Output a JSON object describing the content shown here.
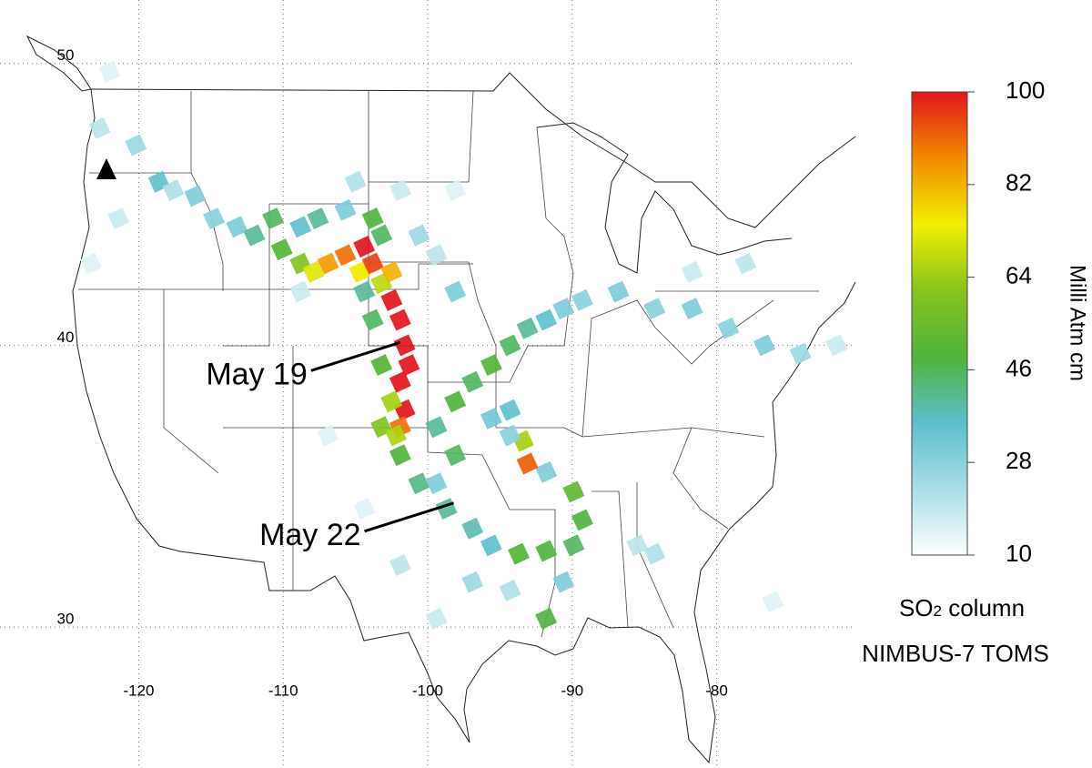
{
  "map": {
    "lonlim": [
      -129.6,
      -70.4
    ],
    "latlim": [
      25,
      52.25
    ],
    "lon_ticks": [
      -120,
      -110,
      -100,
      -90,
      -80
    ],
    "lat_ticks": [
      50,
      40,
      30
    ],
    "annotations": [
      {
        "text": "May 19",
        "lon": -101.9,
        "lat": 40.1
      },
      {
        "text": "May 22",
        "lon": -98.2,
        "lat": 34.4
      }
    ]
  },
  "colorbar": {
    "lim": [
      10,
      100
    ],
    "ticks": [
      100,
      82,
      64,
      46,
      28,
      10
    ],
    "colors": [
      "#ffffff",
      "#a9dde7",
      "#5cbfcc",
      "#4fb33a",
      "#88c41c",
      "#f2ee00",
      "#f28a00",
      "#e3141c"
    ],
    "title": "Milli Atm cm",
    "caption_main": "SO",
    "caption_sub": "2",
    "caption_rest": " column",
    "source": "NIMBUS-7 TOMS"
  },
  "plume": {
    "cells": [
      {
        "lon": -122.0,
        "lat": 49.7,
        "value": 15
      },
      {
        "lon": -122.7,
        "lat": 47.7,
        "value": 20
      },
      {
        "lon": -120.2,
        "lat": 47.1,
        "value": 25
      },
      {
        "lon": -118.6,
        "lat": 45.8,
        "value": 35
      },
      {
        "lon": -117.6,
        "lat": 45.5,
        "value": 22
      },
      {
        "lon": -116.1,
        "lat": 45.3,
        "value": 30
      },
      {
        "lon": -114.8,
        "lat": 44.5,
        "value": 28
      },
      {
        "lon": -113.2,
        "lat": 44.2,
        "value": 30
      },
      {
        "lon": -112.0,
        "lat": 43.9,
        "value": 40
      },
      {
        "lon": -110.7,
        "lat": 44.5,
        "value": 45
      },
      {
        "lon": -110.1,
        "lat": 43.4,
        "value": 50
      },
      {
        "lon": -108.8,
        "lat": 42.9,
        "value": 60
      },
      {
        "lon": -107.9,
        "lat": 42.6,
        "value": 72
      },
      {
        "lon": -106.9,
        "lat": 42.9,
        "value": 85
      },
      {
        "lon": -105.7,
        "lat": 43.2,
        "value": 90
      },
      {
        "lon": -104.4,
        "lat": 43.5,
        "value": 100
      },
      {
        "lon": -104.7,
        "lat": 42.6,
        "value": 75
      },
      {
        "lon": -103.8,
        "lat": 42.9,
        "value": 95
      },
      {
        "lon": -103.2,
        "lat": 42.2,
        "value": 68
      },
      {
        "lon": -102.5,
        "lat": 42.6,
        "value": 82
      },
      {
        "lon": -102.5,
        "lat": 41.6,
        "value": 100
      },
      {
        "lon": -101.9,
        "lat": 40.9,
        "value": 100
      },
      {
        "lon": -101.6,
        "lat": 40.0,
        "value": 100
      },
      {
        "lon": -101.3,
        "lat": 39.3,
        "value": 100
      },
      {
        "lon": -101.9,
        "lat": 38.7,
        "value": 100
      },
      {
        "lon": -101.6,
        "lat": 37.7,
        "value": 100
      },
      {
        "lon": -101.9,
        "lat": 37.1,
        "value": 90
      },
      {
        "lon": -102.5,
        "lat": 38.0,
        "value": 65
      },
      {
        "lon": -103.2,
        "lat": 37.1,
        "value": 60
      },
      {
        "lon": -102.2,
        "lat": 36.8,
        "value": 66
      },
      {
        "lon": -103.2,
        "lat": 39.3,
        "value": 50
      },
      {
        "lon": -103.8,
        "lat": 40.9,
        "value": 45
      },
      {
        "lon": -104.4,
        "lat": 41.9,
        "value": 40
      },
      {
        "lon": -108.8,
        "lat": 44.2,
        "value": 35
      },
      {
        "lon": -107.6,
        "lat": 44.5,
        "value": 40
      },
      {
        "lon": -105.7,
        "lat": 44.8,
        "value": 30
      },
      {
        "lon": -103.8,
        "lat": 44.5,
        "value": 48
      },
      {
        "lon": -103.2,
        "lat": 43.9,
        "value": 45
      },
      {
        "lon": -105.0,
        "lat": 45.8,
        "value": 22
      },
      {
        "lon": -101.9,
        "lat": 45.5,
        "value": 18
      },
      {
        "lon": -98.1,
        "lat": 45.5,
        "value": 15
      },
      {
        "lon": -99.4,
        "lat": 37.1,
        "value": 40
      },
      {
        "lon": -98.1,
        "lat": 38.0,
        "value": 48
      },
      {
        "lon": -96.9,
        "lat": 38.7,
        "value": 45
      },
      {
        "lon": -95.6,
        "lat": 39.3,
        "value": 50
      },
      {
        "lon": -94.3,
        "lat": 40.0,
        "value": 45
      },
      {
        "lon": -93.1,
        "lat": 40.6,
        "value": 40
      },
      {
        "lon": -91.8,
        "lat": 40.9,
        "value": 35
      },
      {
        "lon": -90.6,
        "lat": 41.3,
        "value": 30
      },
      {
        "lon": -89.3,
        "lat": 41.6,
        "value": 28
      },
      {
        "lon": -86.8,
        "lat": 41.9,
        "value": 30
      },
      {
        "lon": -84.3,
        "lat": 41.3,
        "value": 28
      },
      {
        "lon": -81.7,
        "lat": 41.3,
        "value": 30
      },
      {
        "lon": -79.2,
        "lat": 40.6,
        "value": 28
      },
      {
        "lon": -76.7,
        "lat": 40.0,
        "value": 30
      },
      {
        "lon": -74.2,
        "lat": 39.7,
        "value": 25
      },
      {
        "lon": -71.7,
        "lat": 40.0,
        "value": 18
      },
      {
        "lon": -101.9,
        "lat": 36.1,
        "value": 48
      },
      {
        "lon": -100.6,
        "lat": 35.1,
        "value": 42
      },
      {
        "lon": -98.7,
        "lat": 34.2,
        "value": 40
      },
      {
        "lon": -96.9,
        "lat": 33.5,
        "value": 38
      },
      {
        "lon": -95.6,
        "lat": 32.9,
        "value": 35
      },
      {
        "lon": -93.7,
        "lat": 32.6,
        "value": 50
      },
      {
        "lon": -91.8,
        "lat": 32.7,
        "value": 48
      },
      {
        "lon": -89.9,
        "lat": 32.9,
        "value": 45
      },
      {
        "lon": -89.3,
        "lat": 33.8,
        "value": 48
      },
      {
        "lon": -89.9,
        "lat": 34.8,
        "value": 52
      },
      {
        "lon": -91.8,
        "lat": 35.5,
        "value": 30
      },
      {
        "lon": -93.1,
        "lat": 35.8,
        "value": 92
      },
      {
        "lon": -93.4,
        "lat": 36.6,
        "value": 65
      },
      {
        "lon": -94.3,
        "lat": 37.7,
        "value": 35
      },
      {
        "lon": -94.3,
        "lat": 36.8,
        "value": 28
      },
      {
        "lon": -95.6,
        "lat": 37.4,
        "value": 32
      },
      {
        "lon": -98.1,
        "lat": 36.1,
        "value": 45
      },
      {
        "lon": -99.4,
        "lat": 35.1,
        "value": 30
      },
      {
        "lon": -96.9,
        "lat": 31.6,
        "value": 25
      },
      {
        "lon": -94.3,
        "lat": 31.3,
        "value": 22
      },
      {
        "lon": -91.8,
        "lat": 30.3,
        "value": 48
      },
      {
        "lon": -90.6,
        "lat": 31.6,
        "value": 30
      },
      {
        "lon": -98.1,
        "lat": 41.9,
        "value": 30
      },
      {
        "lon": -99.4,
        "lat": 43.2,
        "value": 20
      },
      {
        "lon": -100.6,
        "lat": 43.9,
        "value": 25
      },
      {
        "lon": -108.8,
        "lat": 41.9,
        "value": 18
      },
      {
        "lon": -106.9,
        "lat": 36.8,
        "value": 15
      },
      {
        "lon": -104.4,
        "lat": 34.2,
        "value": 15
      },
      {
        "lon": -101.9,
        "lat": 32.2,
        "value": 20
      },
      {
        "lon": -99.4,
        "lat": 30.3,
        "value": 18
      },
      {
        "lon": -85.5,
        "lat": 32.9,
        "value": 20
      },
      {
        "lon": -84.3,
        "lat": 32.6,
        "value": 22
      },
      {
        "lon": -81.7,
        "lat": 42.6,
        "value": 18
      },
      {
        "lon": -78.0,
        "lat": 42.9,
        "value": 20
      },
      {
        "lon": -76.1,
        "lat": 30.9,
        "value": 15
      },
      {
        "lon": -123.3,
        "lat": 42.9,
        "value": 15
      },
      {
        "lon": -121.4,
        "lat": 44.5,
        "value": 18
      }
    ]
  }
}
